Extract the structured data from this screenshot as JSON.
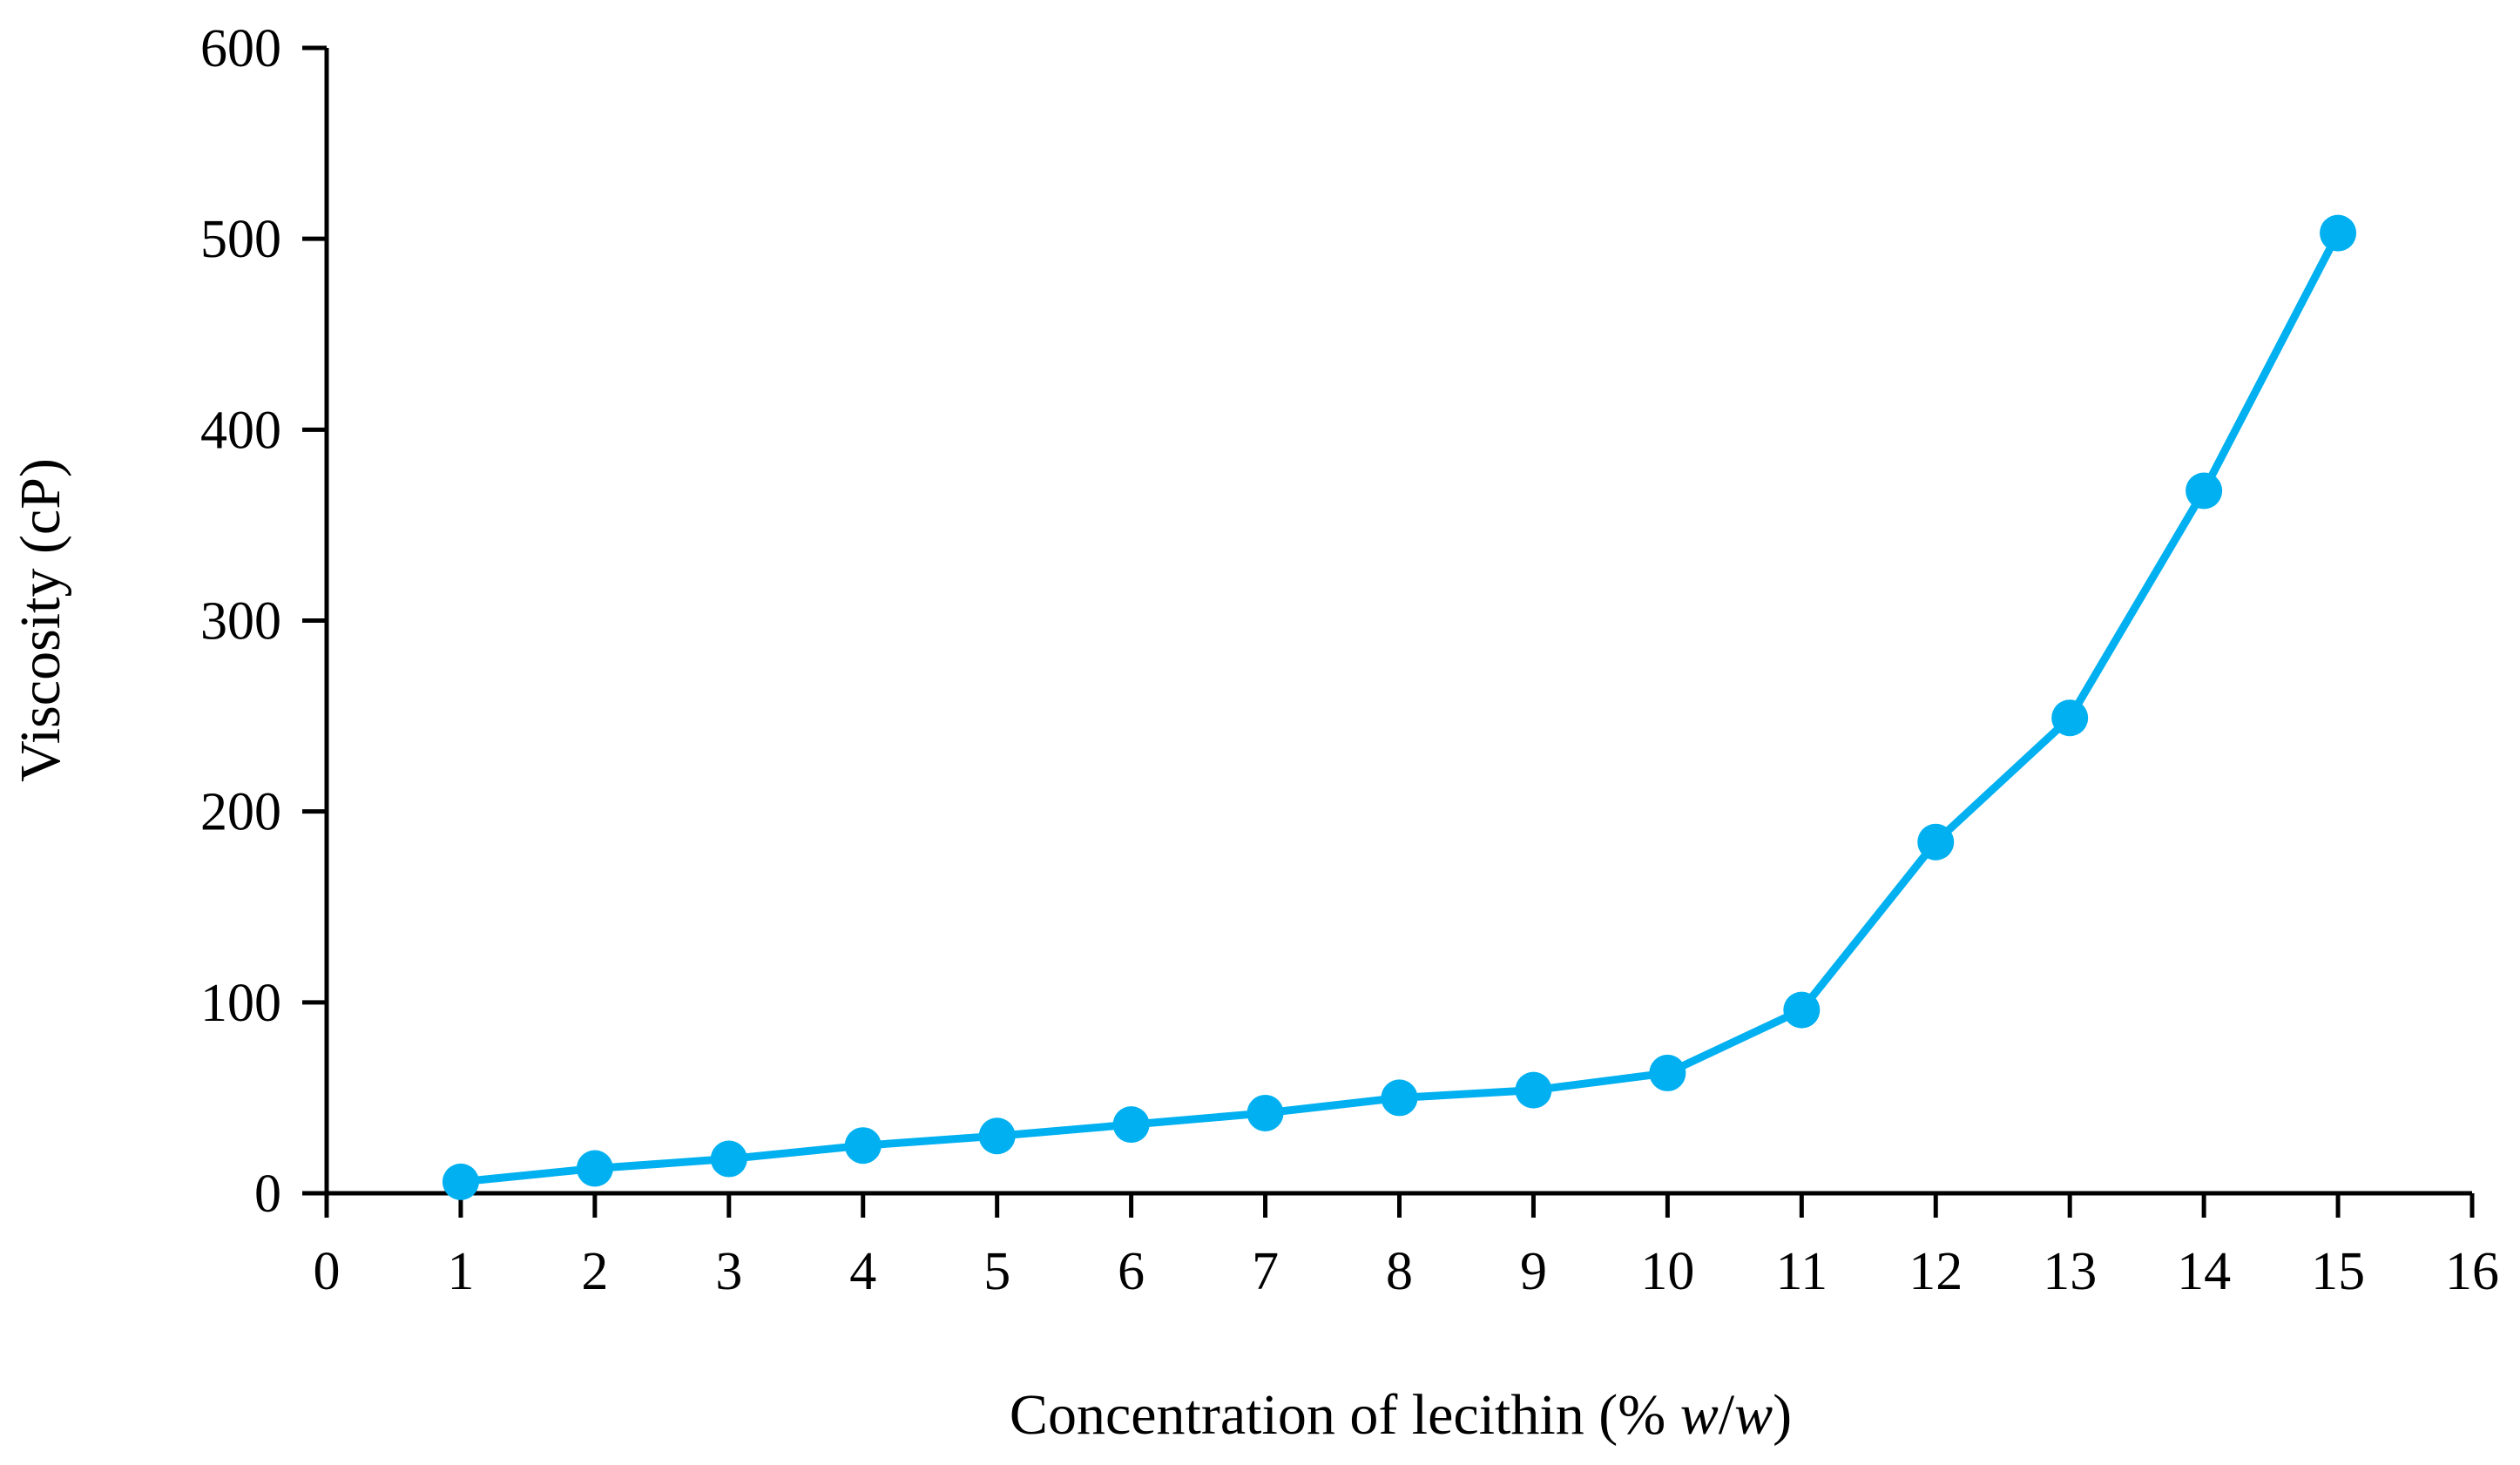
{
  "chart_data": {
    "type": "line",
    "title": "",
    "xlabel": {
      "before": "Concentration of lecithin (% ",
      "w1": "w",
      "slash": "/",
      "w2": "w",
      "after": ")"
    },
    "ylabel": "Viscosity (cP)",
    "xlim": [
      0,
      16
    ],
    "ylim": [
      0,
      600
    ],
    "xticks": [
      "0",
      "1",
      "2",
      "3",
      "4",
      "5",
      "6",
      "7",
      "8",
      "9",
      "10",
      "11",
      "12",
      "13",
      "14",
      "15",
      "16"
    ],
    "yticks": [
      "0",
      "100",
      "200",
      "300",
      "400",
      "500",
      "600"
    ],
    "grid": false,
    "legend": "none",
    "series": [
      {
        "name": "Viscosity",
        "color": "#00b0f0",
        "x": [
          1,
          2,
          3,
          4,
          5,
          6,
          7,
          8,
          9,
          10,
          11,
          12,
          13,
          14,
          15
        ],
        "y": [
          6,
          13,
          18,
          25,
          30,
          36,
          42,
          50,
          54,
          63,
          96,
          184,
          249,
          368,
          503
        ]
      }
    ]
  }
}
